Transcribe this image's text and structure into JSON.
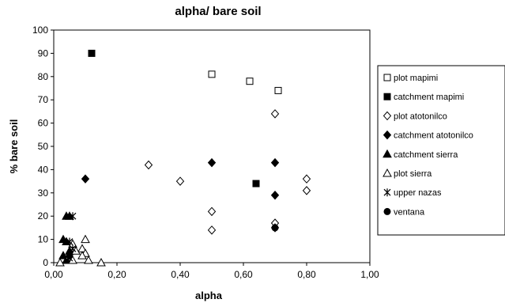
{
  "chart_data": {
    "type": "scatter",
    "title": "alpha/ bare soil",
    "xlabel": "alpha",
    "ylabel": "% bare soil",
    "xlim": [
      0,
      1
    ],
    "ylim": [
      0,
      100
    ],
    "xticks": [
      "0,00",
      "0,20",
      "0,40",
      "0,60",
      "0,80",
      "1,00"
    ],
    "yticks": [
      "0",
      "10",
      "20",
      "30",
      "40",
      "50",
      "60",
      "70",
      "80",
      "90",
      "100"
    ],
    "grid": false,
    "legend_position": "right",
    "series": [
      {
        "name": "plot mapimi",
        "marker": "square-open",
        "points": [
          [
            0.5,
            81
          ],
          [
            0.62,
            78
          ],
          [
            0.71,
            74
          ]
        ]
      },
      {
        "name": "catchment mapimi",
        "marker": "square-filled",
        "points": [
          [
            0.12,
            90
          ],
          [
            0.64,
            34
          ]
        ]
      },
      {
        "name": "plot atotonilco",
        "marker": "diamond-open",
        "points": [
          [
            0.3,
            42
          ],
          [
            0.4,
            35
          ],
          [
            0.5,
            22
          ],
          [
            0.5,
            14
          ],
          [
            0.7,
            64
          ],
          [
            0.7,
            17
          ],
          [
            0.8,
            36
          ],
          [
            0.8,
            31
          ]
        ]
      },
      {
        "name": "catchment atotonilco",
        "marker": "diamond-filled",
        "points": [
          [
            0.1,
            36
          ],
          [
            0.5,
            43
          ],
          [
            0.7,
            43
          ],
          [
            0.7,
            29
          ],
          [
            0.7,
            15
          ]
        ]
      },
      {
        "name": "catchment sierra",
        "marker": "triangle-filled",
        "points": [
          [
            0.04,
            20
          ],
          [
            0.05,
            20
          ],
          [
            0.03,
            10
          ],
          [
            0.04,
            9
          ],
          [
            0.03,
            3
          ],
          [
            0.05,
            5
          ],
          [
            0.04,
            1
          ]
        ]
      },
      {
        "name": "plot sierra",
        "marker": "triangle-open",
        "points": [
          [
            0.1,
            10
          ],
          [
            0.09,
            6
          ],
          [
            0.1,
            4
          ],
          [
            0.09,
            3
          ],
          [
            0.06,
            8
          ],
          [
            0.07,
            5
          ],
          [
            0.05,
            3
          ],
          [
            0.06,
            1
          ],
          [
            0.11,
            1
          ],
          [
            0.15,
            0
          ],
          [
            0.02,
            0
          ]
        ]
      },
      {
        "name": "upper nazas",
        "marker": "asterisk",
        "points": [
          [
            0.06,
            20
          ],
          [
            0.05,
            9
          ],
          [
            0.06,
            6
          ],
          [
            0.05,
            2
          ]
        ]
      },
      {
        "name": "ventana",
        "marker": "circle-filled",
        "points": [
          [
            0.7,
            15
          ],
          [
            0.05,
            3
          ]
        ]
      }
    ]
  }
}
